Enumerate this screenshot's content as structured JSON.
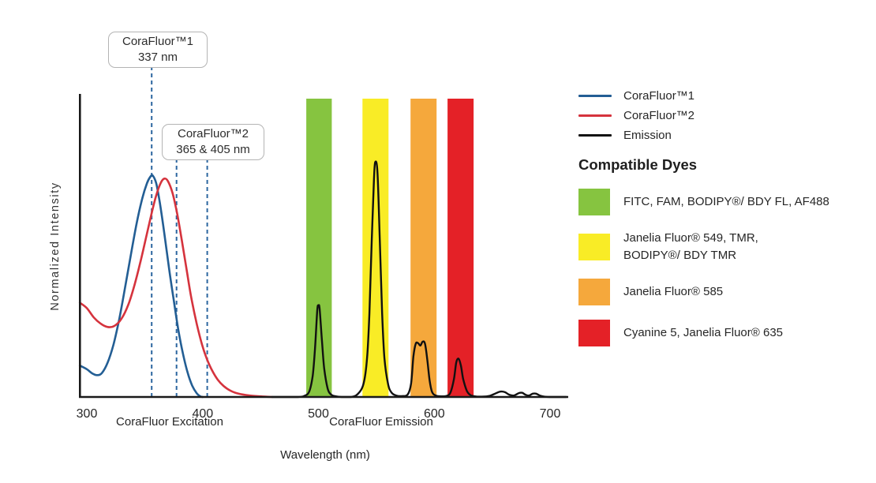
{
  "chart_data": {
    "type": "line",
    "xlabel": "Wavelength (nm)",
    "ylabel": "Normalized Intensity",
    "x_ticks": [
      300,
      400,
      500,
      600,
      700
    ],
    "x_range": [
      294,
      716
    ],
    "y_range": [
      0,
      1
    ],
    "grid": false,
    "legend_position": "right-outside",
    "region_labels": [
      {
        "text": "CoraFluor Excitation",
        "center_nm": 372
      },
      {
        "text": "CoraFluor Emission",
        "center_nm": 554
      }
    ],
    "annotations": [
      {
        "line1": "CoraFluor™1",
        "line2": "337 nm",
        "marker_nm": [
          356
        ]
      },
      {
        "line1": "CoraFluor™2",
        "line2": "365 & 405 nm",
        "marker_nm": [
          377.5,
          404
        ]
      }
    ],
    "dashed_marker_color": "#2c66a0",
    "series": [
      {
        "name": "CoraFluor™1",
        "color": "#235e94",
        "role": "excitation",
        "points": [
          [
            294,
            0.105
          ],
          [
            300,
            0.093
          ],
          [
            305,
            0.078
          ],
          [
            309,
            0.073
          ],
          [
            313,
            0.08
          ],
          [
            318,
            0.115
          ],
          [
            323,
            0.175
          ],
          [
            328,
            0.26
          ],
          [
            333,
            0.365
          ],
          [
            338,
            0.475
          ],
          [
            343,
            0.58
          ],
          [
            348,
            0.665
          ],
          [
            352,
            0.715
          ],
          [
            355,
            0.737
          ],
          [
            357,
            0.74
          ],
          [
            360,
            0.713
          ],
          [
            363,
            0.65
          ],
          [
            367,
            0.545
          ],
          [
            371,
            0.43
          ],
          [
            375,
            0.325
          ],
          [
            379,
            0.225
          ],
          [
            383,
            0.145
          ],
          [
            387,
            0.082
          ],
          [
            391,
            0.038
          ],
          [
            395,
            0.012
          ],
          [
            398,
            0.002
          ],
          [
            400,
            0
          ]
        ]
      },
      {
        "name": "CoraFluor™2",
        "color": "#d5333d",
        "role": "excitation",
        "points": [
          [
            294,
            0.315
          ],
          [
            300,
            0.297
          ],
          [
            306,
            0.266
          ],
          [
            312,
            0.245
          ],
          [
            318,
            0.234
          ],
          [
            324,
            0.238
          ],
          [
            330,
            0.262
          ],
          [
            336,
            0.31
          ],
          [
            341,
            0.372
          ],
          [
            346,
            0.447
          ],
          [
            351,
            0.53
          ],
          [
            356,
            0.615
          ],
          [
            360,
            0.675
          ],
          [
            364,
            0.717
          ],
          [
            367,
            0.73
          ],
          [
            370,
            0.722
          ],
          [
            374,
            0.682
          ],
          [
            378,
            0.613
          ],
          [
            382,
            0.525
          ],
          [
            386,
            0.43
          ],
          [
            390,
            0.336
          ],
          [
            395,
            0.243
          ],
          [
            400,
            0.168
          ],
          [
            404,
            0.124
          ],
          [
            408,
            0.09
          ],
          [
            413,
            0.058
          ],
          [
            418,
            0.037
          ],
          [
            424,
            0.021
          ],
          [
            431,
            0.011
          ],
          [
            440,
            0.005
          ],
          [
            450,
            0.002
          ],
          [
            460,
            0
          ]
        ]
      },
      {
        "name": "Emission",
        "color": "#111111",
        "role": "emission",
        "points": [
          [
            460,
            0
          ],
          [
            482,
            0
          ],
          [
            488,
            0.004
          ],
          [
            492,
            0.018
          ],
          [
            495,
            0.07
          ],
          [
            497,
            0.16
          ],
          [
            499,
            0.29
          ],
          [
            500,
            0.305
          ],
          [
            501,
            0.295
          ],
          [
            503,
            0.19
          ],
          [
            505,
            0.095
          ],
          [
            508,
            0.028
          ],
          [
            511,
            0.008
          ],
          [
            515,
            0.002
          ],
          [
            520,
            0
          ],
          [
            528,
            0
          ],
          [
            534,
            0.01
          ],
          [
            539,
            0.045
          ],
          [
            542,
            0.13
          ],
          [
            544,
            0.28
          ],
          [
            546,
            0.52
          ],
          [
            548,
            0.73
          ],
          [
            549,
            0.785
          ],
          [
            551,
            0.75
          ],
          [
            553,
            0.52
          ],
          [
            555,
            0.28
          ],
          [
            557,
            0.13
          ],
          [
            560,
            0.045
          ],
          [
            563,
            0.015
          ],
          [
            567,
            0.005
          ],
          [
            572,
            0.003
          ],
          [
            577,
            0.008
          ],
          [
            580,
            0.045
          ],
          [
            582,
            0.135
          ],
          [
            584,
            0.178
          ],
          [
            586,
            0.18
          ],
          [
            588,
            0.172
          ],
          [
            590,
            0.185
          ],
          [
            592,
            0.178
          ],
          [
            594,
            0.125
          ],
          [
            596,
            0.055
          ],
          [
            598,
            0.018
          ],
          [
            601,
            0.005
          ],
          [
            606,
            0.002
          ],
          [
            611,
            0.004
          ],
          [
            614,
            0.015
          ],
          [
            617,
            0.06
          ],
          [
            619,
            0.115
          ],
          [
            621,
            0.128
          ],
          [
            623,
            0.105
          ],
          [
            625,
            0.06
          ],
          [
            628,
            0.022
          ],
          [
            631,
            0.007
          ],
          [
            635,
            0.002
          ],
          [
            641,
            0.001
          ],
          [
            648,
            0.004
          ],
          [
            653,
            0.012
          ],
          [
            657,
            0.018
          ],
          [
            661,
            0.016
          ],
          [
            665,
            0.007
          ],
          [
            669,
            0.005
          ],
          [
            673,
            0.013
          ],
          [
            676,
            0.014
          ],
          [
            679,
            0.007
          ],
          [
            682,
            0.005
          ],
          [
            685,
            0.011
          ],
          [
            688,
            0.011
          ],
          [
            691,
            0.005
          ],
          [
            695,
            0.001
          ],
          [
            700,
            0
          ],
          [
            714,
            0
          ]
        ]
      }
    ],
    "bands": [
      {
        "dyes": "FITC, FAM, BODIPY®/ BDY FL, AF488",
        "color": "#86c440",
        "nm_range": [
          489.5,
          511.5
        ]
      },
      {
        "dyes": "Janelia Fluor® 549, TMR,\nBODIPY®/ BDY TMR",
        "color": "#f9ec26",
        "nm_range": [
          538,
          560.5
        ]
      },
      {
        "dyes": "Janelia Fluor® 585",
        "color": "#f5a83c",
        "nm_range": [
          579.5,
          602
        ]
      },
      {
        "dyes": "Cyanine 5, Janelia Fluor® 635",
        "color": "#e42127",
        "nm_range": [
          611.5,
          634
        ]
      }
    ]
  },
  "dyes_panel": {
    "heading": "Compatible Dyes"
  }
}
